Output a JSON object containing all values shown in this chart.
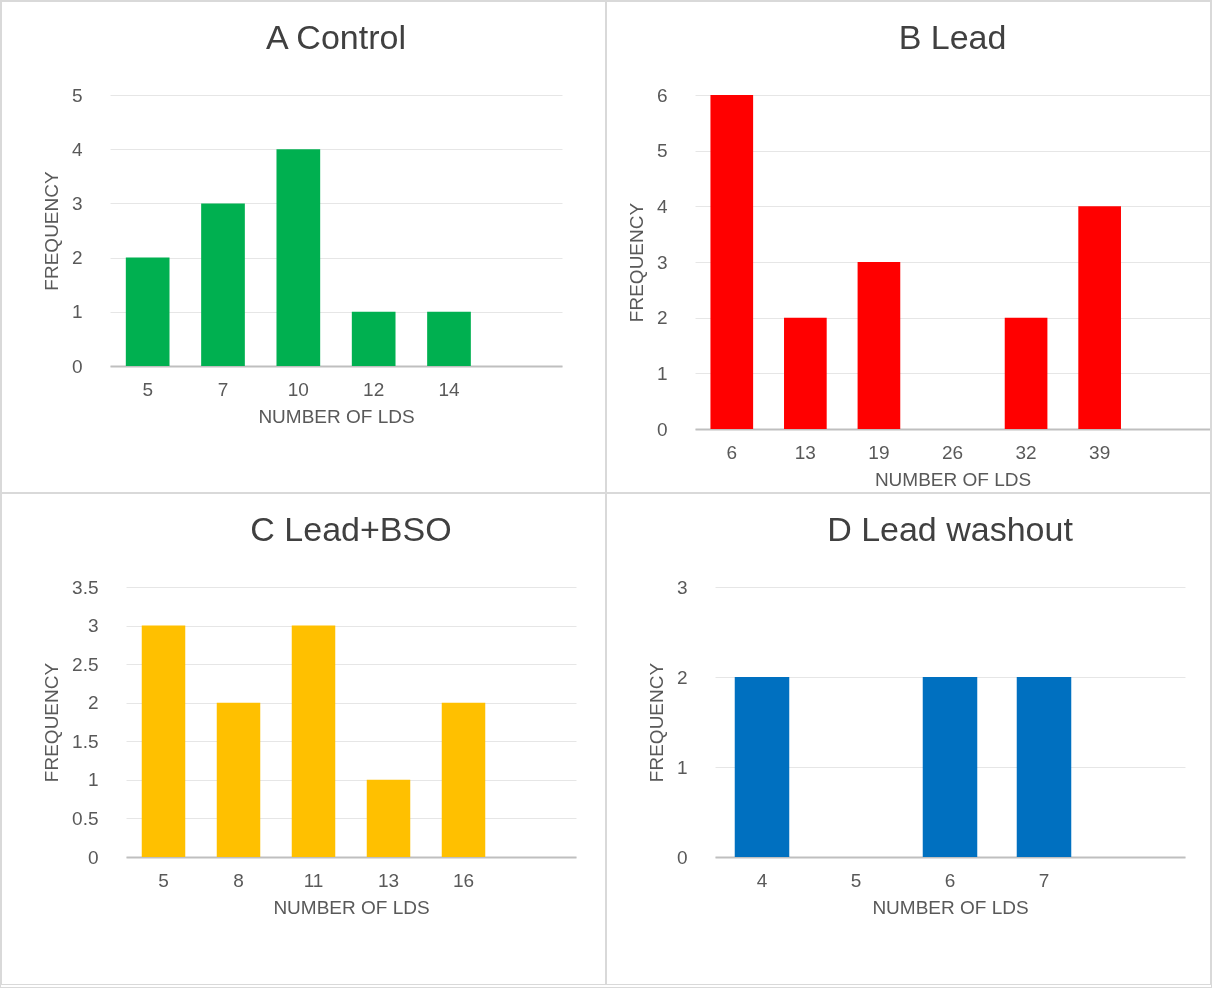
{
  "chart_data": [
    {
      "type": "bar",
      "title": "A Control",
      "xlabel": "NUMBER OF LDS",
      "ylabel": "FREQUENCY",
      "categories": [
        "5",
        "7",
        "10",
        "12",
        "14",
        null
      ],
      "values": [
        2,
        3,
        4,
        1,
        1,
        null
      ],
      "color": "#00b050",
      "ylim": [
        0,
        5
      ],
      "yticks": [
        0,
        1,
        2,
        3,
        4,
        5
      ],
      "grid": "y"
    },
    {
      "type": "bar",
      "title": "B Lead",
      "xlabel": "NUMBER OF LDS",
      "ylabel": "FREQUENCY",
      "categories": [
        "6",
        "13",
        "19",
        "26",
        "32",
        "39",
        null
      ],
      "values": [
        6,
        2,
        3,
        0,
        2,
        4,
        null
      ],
      "color": "#ff0000",
      "ylim": [
        0,
        6
      ],
      "yticks": [
        0,
        1,
        2,
        3,
        4,
        5,
        6
      ],
      "grid": "y"
    },
    {
      "type": "bar",
      "title": "C Lead+BSO",
      "xlabel": "NUMBER OF LDS",
      "ylabel": "FREQUENCY",
      "categories": [
        "5",
        "8",
        "11",
        "13",
        "16",
        null
      ],
      "values": [
        3,
        2,
        3,
        1,
        2,
        null
      ],
      "color": "#ffc000",
      "ylim": [
        0,
        3.5
      ],
      "yticks": [
        0,
        0.5,
        1,
        1.5,
        2,
        2.5,
        3,
        3.5
      ],
      "grid": "y"
    },
    {
      "type": "bar",
      "title": "D Lead washout",
      "xlabel": "NUMBER OF LDS",
      "ylabel": "FREQUENCY",
      "categories": [
        "4",
        "5",
        "6",
        "7",
        null
      ],
      "values": [
        2,
        0,
        2,
        2,
        null
      ],
      "color": "#0070c0",
      "ylim": [
        0,
        3
      ],
      "yticks": [
        0,
        1,
        2,
        3
      ],
      "grid": "y"
    }
  ]
}
